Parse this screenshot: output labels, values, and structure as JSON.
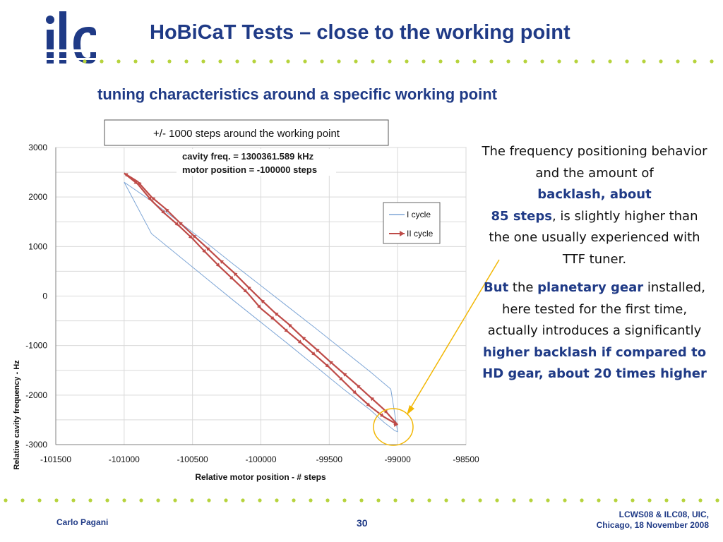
{
  "header": {
    "logo_text": "ilc",
    "title": "HoBiCaT Tests – close to the working point"
  },
  "subtitle": "tuning characteristics around a specific working point",
  "chart_box_label": "+/- 1000 steps around the working point",
  "chart_data": {
    "type": "line",
    "title": "",
    "annotations": [
      "cavity freq. = 1300361.589  kHz",
      "motor position = -100000  steps"
    ],
    "xlabel": "Relative motor position - #  steps",
    "ylabel": "Relative cavity frequency - Hz",
    "xlim": [
      -101500,
      -98500
    ],
    "ylim": [
      -3000,
      3000
    ],
    "xticks": [
      "-101500",
      "-101000",
      "-100500",
      "-100000",
      "-99500",
      "-99000",
      "-98500"
    ],
    "yticks": [
      "3000",
      "2000",
      "1000",
      "0",
      "-1000",
      "-2000",
      "-3000"
    ],
    "grid": true,
    "legend_position": "right",
    "colors": {
      "cycle1": "#7ea6d6",
      "cycle2": "#be4b48",
      "grid": "#d9d9d9",
      "highlight": "#f2b705"
    },
    "series": [
      {
        "name": "I cycle",
        "x": [
          -101000,
          -100800,
          -100600,
          -100400,
          -100200,
          -100000,
          -99800,
          -99600,
          -99400,
          -99200,
          -99050,
          -99000,
          -99020,
          -99100,
          -99200,
          -99400,
          -99600,
          -99800,
          -100000,
          -100200,
          -100400,
          -100600,
          -100800,
          -101000
        ],
        "y": [
          2300,
          1920,
          1500,
          1080,
          640,
          210,
          -220,
          -650,
          -1090,
          -1530,
          -1880,
          -2740,
          -2720,
          -2550,
          -2300,
          -1870,
          -1420,
          -970,
          -530,
          -90,
          360,
          810,
          1260,
          2300
        ]
      },
      {
        "name": "II cycle",
        "x": [
          -101000,
          -100900,
          -100800,
          -100700,
          -100600,
          -100500,
          -100400,
          -100300,
          -100200,
          -100100,
          -100000,
          -99900,
          -99800,
          -99700,
          -99600,
          -99500,
          -99400,
          -99300,
          -99200,
          -99100,
          -99000,
          -99000,
          -99100,
          -99200,
          -99300,
          -99400,
          -99500,
          -99600,
          -99700,
          -99800,
          -99900,
          -100000,
          -100100,
          -100200,
          -100300,
          -100400,
          -100500,
          -100600,
          -100700,
          -100800,
          -100900,
          -101000
        ],
        "y": [
          2480,
          2260,
          1930,
          1660,
          1420,
          1160,
          870,
          590,
          330,
          70,
          -250,
          -480,
          -730,
          -960,
          -1200,
          -1440,
          -1710,
          -1980,
          -2230,
          -2440,
          -2600,
          -2600,
          -2290,
          -2040,
          -1790,
          -1550,
          -1310,
          -1060,
          -820,
          -560,
          -330,
          -70,
          200,
          480,
          730,
          990,
          1240,
          1500,
          1770,
          2000,
          2310,
          2480
        ]
      }
    ]
  },
  "side_text": {
    "p1": {
      "a": "The frequency positioning behavior and the amount of",
      "b": "backlash, about",
      "c": "85 steps",
      "d": ", is slightly higher than the one usually experienced with TTF tuner."
    },
    "p2": {
      "a": "But",
      "b": " the ",
      "c": "planetary gear",
      "d": " installed, here tested for the first time, actually introduces a significantly ",
      "e": "higher backlash if compared to HD gear, about 20 times higher"
    }
  },
  "footer": {
    "author": "Carlo Pagani",
    "page_number": "30",
    "conference_line1": "LCWS08 & ILC08, UIC,",
    "conference_line2": "Chicago, 18 November 2008"
  }
}
